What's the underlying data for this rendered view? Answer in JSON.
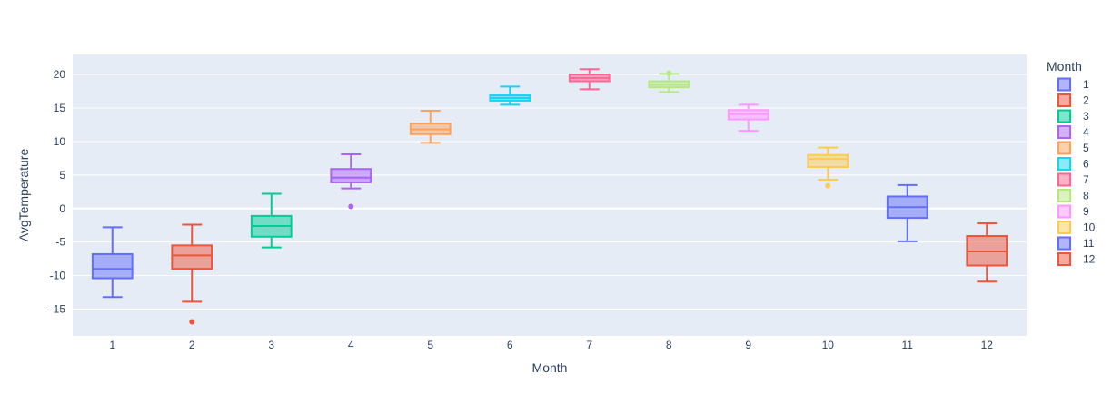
{
  "chart_data": {
    "type": "box",
    "title": "",
    "xlabel": "Month",
    "ylabel": "AvgTemperature",
    "ylim": [
      -19,
      23
    ],
    "yticks": [
      -15,
      -10,
      -5,
      0,
      5,
      10,
      15,
      20
    ],
    "grid": true,
    "legend": {
      "title": "Month",
      "placement": "right"
    },
    "background_color": "#e5ecf6",
    "categories": [
      "1",
      "2",
      "3",
      "4",
      "5",
      "6",
      "7",
      "8",
      "9",
      "10",
      "11",
      "12"
    ],
    "series": [
      {
        "name": "1",
        "color": "#636efa",
        "min": -13.2,
        "q1": -10.4,
        "median": -9.0,
        "q3": -6.8,
        "max": -2.8,
        "outliers": []
      },
      {
        "name": "2",
        "color": "#EF553B",
        "min": -13.9,
        "q1": -9.0,
        "median": -7.0,
        "q3": -5.5,
        "max": -2.4,
        "outliers": [
          -16.9
        ]
      },
      {
        "name": "3",
        "color": "#00cc96",
        "min": -5.8,
        "q1": -4.2,
        "median": -2.6,
        "q3": -1.1,
        "max": 2.2,
        "outliers": []
      },
      {
        "name": "4",
        "color": "#ab63fa",
        "min": 3.0,
        "q1": 3.9,
        "median": 4.6,
        "q3": 5.9,
        "max": 8.1,
        "outliers": [
          0.3
        ]
      },
      {
        "name": "5",
        "color": "#FFA15A",
        "min": 9.8,
        "q1": 11.1,
        "median": 11.8,
        "q3": 12.7,
        "max": 14.6,
        "outliers": []
      },
      {
        "name": "6",
        "color": "#19d3f3",
        "min": 15.5,
        "q1": 16.1,
        "median": 16.5,
        "q3": 16.9,
        "max": 18.2,
        "outliers": []
      },
      {
        "name": "7",
        "color": "#FF6692",
        "min": 17.8,
        "q1": 19.0,
        "median": 19.5,
        "q3": 20.0,
        "max": 20.8,
        "outliers": []
      },
      {
        "name": "8",
        "color": "#B6E880",
        "min": 17.4,
        "q1": 18.1,
        "median": 18.5,
        "q3": 19.0,
        "max": 20.1,
        "outliers": [
          20.2
        ]
      },
      {
        "name": "9",
        "color": "#FF97FF",
        "min": 11.6,
        "q1": 13.3,
        "median": 14.1,
        "q3": 14.7,
        "max": 15.5,
        "outliers": []
      },
      {
        "name": "10",
        "color": "#FECB52",
        "min": 4.3,
        "q1": 6.2,
        "median": 7.4,
        "q3": 8.0,
        "max": 9.1,
        "outliers": [
          3.4
        ]
      },
      {
        "name": "11",
        "color": "#636efa",
        "min": -4.9,
        "q1": -1.4,
        "median": 0.2,
        "q3": 1.8,
        "max": 3.5,
        "outliers": []
      },
      {
        "name": "12",
        "color": "#EF553B",
        "min": -10.9,
        "q1": -8.5,
        "median": -6.4,
        "q3": -4.1,
        "max": -2.2,
        "outliers": []
      }
    ]
  }
}
